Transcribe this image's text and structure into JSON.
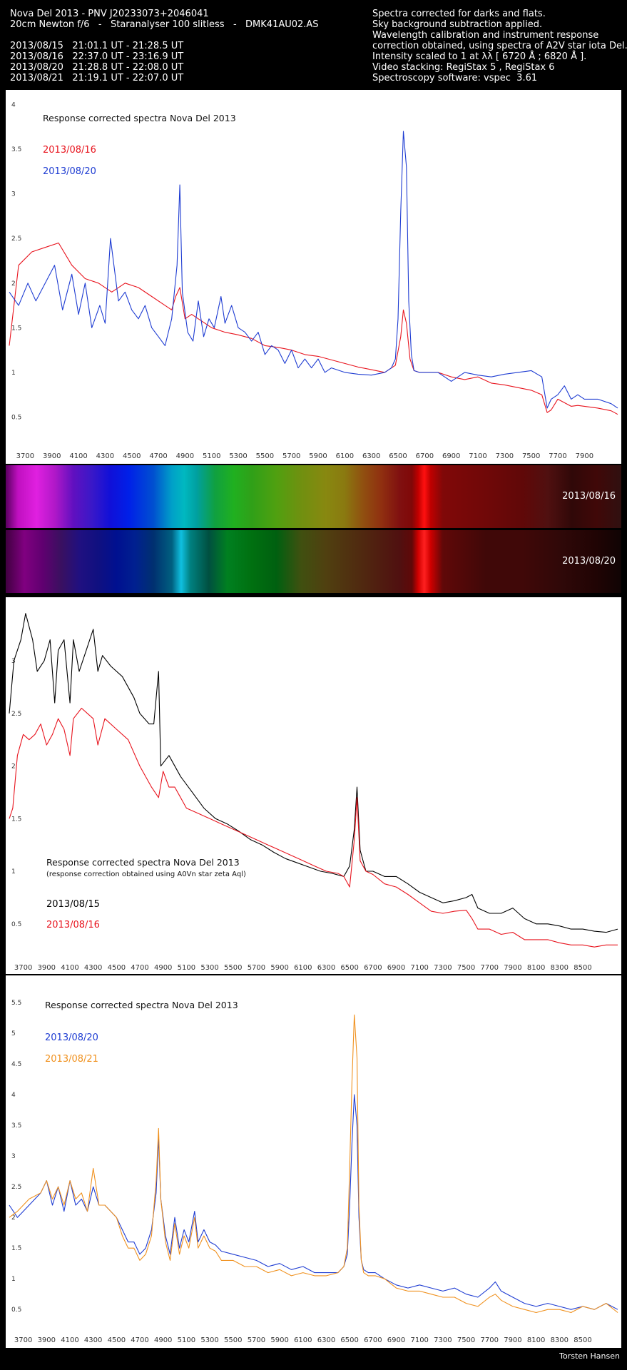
{
  "header": {
    "left": [
      "Nova Del 2013 - PNV J20233073+2046041",
      "20cm Newton f/6   -   Staranalyser 100 slitless   -   DMK41AU02.AS",
      "",
      "2013/08/15   21:01.1 UT - 21:28.5 UT",
      "2013/08/16   22:37.0 UT - 23:16.9 UT",
      "2013/08/20   21:28.8 UT - 22:08.0 UT",
      "2013/08/21   21:19.1 UT - 22:07.0 UT"
    ],
    "right": [
      "Spectra corrected for darks and flats.",
      "Sky background subtraction applied.",
      "Wavelength calibration and instrument response",
      "correction obtained, using spectra of A2V star iota Del.",
      "Intensity scaled to 1 at λλ [ 6720 Å ; 6820 Å ].",
      "Video stacking: RegiStax 5 , RegiStax 6",
      "Spectroscopy software: vspec  3.61"
    ]
  },
  "strip": {
    "band_labels": [
      "2013/08/16",
      "2013/08/20"
    ]
  },
  "footer": {
    "credit": "Torsten Hansen"
  },
  "chart_data": [
    {
      "type": "line",
      "title": "Response corrected spectra Nova Del 2013",
      "subtitle": "",
      "xlim": [
        3580,
        8150
      ],
      "ylim": [
        0.2,
        4.1
      ],
      "xticks": [
        3700,
        3900,
        4100,
        4300,
        4500,
        4700,
        4900,
        5100,
        5300,
        5500,
        5700,
        5900,
        6100,
        6300,
        6500,
        6700,
        6900,
        7100,
        7300,
        7500,
        7700,
        7900
      ],
      "yticks": [
        0.5,
        1,
        1.5,
        2,
        2.5,
        3,
        3.5,
        4
      ],
      "series": [
        {
          "name": "2013/08/16",
          "color": "#e8141e",
          "x": [
            3580,
            3650,
            3750,
            3850,
            3950,
            4050,
            4150,
            4250,
            4350,
            4450,
            4550,
            4650,
            4750,
            4800,
            4830,
            4861,
            4900,
            4950,
            5000,
            5050,
            5100,
            5200,
            5300,
            5400,
            5500,
            5600,
            5700,
            5800,
            5900,
            6000,
            6100,
            6200,
            6300,
            6400,
            6480,
            6520,
            6540,
            6563,
            6590,
            6620,
            6660,
            6720,
            6800,
            6900,
            7000,
            7100,
            7200,
            7300,
            7400,
            7500,
            7580,
            7620,
            7650,
            7700,
            7750,
            7800,
            7850,
            7900,
            8000,
            8100,
            8150
          ],
          "y": [
            1.3,
            2.2,
            2.35,
            2.4,
            2.45,
            2.2,
            2.05,
            2.0,
            1.9,
            2.0,
            1.95,
            1.85,
            1.75,
            1.7,
            1.85,
            1.95,
            1.6,
            1.65,
            1.6,
            1.55,
            1.5,
            1.45,
            1.42,
            1.38,
            1.3,
            1.28,
            1.25,
            1.2,
            1.18,
            1.14,
            1.1,
            1.06,
            1.03,
            1.0,
            1.08,
            1.4,
            1.7,
            1.55,
            1.15,
            1.02,
            1.0,
            1.0,
            1.0,
            0.95,
            0.92,
            0.95,
            0.88,
            0.86,
            0.83,
            0.8,
            0.75,
            0.55,
            0.58,
            0.7,
            0.66,
            0.62,
            0.63,
            0.62,
            0.6,
            0.57,
            0.53
          ]
        },
        {
          "name": "2013/08/20",
          "color": "#1e3cd2",
          "x": [
            3580,
            3650,
            3720,
            3780,
            3850,
            3920,
            3980,
            4050,
            4100,
            4150,
            4200,
            4260,
            4300,
            4340,
            4400,
            4450,
            4500,
            4550,
            4600,
            4650,
            4700,
            4750,
            4800,
            4840,
            4861,
            4880,
            4920,
            4960,
            5000,
            5040,
            5080,
            5120,
            5170,
            5200,
            5250,
            5300,
            5350,
            5400,
            5450,
            5500,
            5550,
            5600,
            5650,
            5700,
            5750,
            5800,
            5850,
            5900,
            5950,
            6000,
            6100,
            6200,
            6300,
            6400,
            6450,
            6480,
            6500,
            6520,
            6540,
            6563,
            6580,
            6600,
            6620,
            6660,
            6720,
            6800,
            6900,
            7000,
            7100,
            7200,
            7300,
            7400,
            7500,
            7580,
            7620,
            7650,
            7700,
            7750,
            7800,
            7850,
            7900,
            8000,
            8100,
            8150
          ],
          "y": [
            1.9,
            1.75,
            2.0,
            1.8,
            2.0,
            2.2,
            1.7,
            2.1,
            1.65,
            2.0,
            1.5,
            1.75,
            1.55,
            2.5,
            1.8,
            1.9,
            1.7,
            1.6,
            1.75,
            1.5,
            1.4,
            1.3,
            1.6,
            2.2,
            3.1,
            1.9,
            1.45,
            1.35,
            1.8,
            1.4,
            1.6,
            1.5,
            1.85,
            1.55,
            1.75,
            1.5,
            1.45,
            1.35,
            1.45,
            1.2,
            1.3,
            1.25,
            1.1,
            1.25,
            1.05,
            1.15,
            1.05,
            1.15,
            1.0,
            1.05,
            1.0,
            0.98,
            0.97,
            1.0,
            1.05,
            1.15,
            1.6,
            2.8,
            3.7,
            3.3,
            1.8,
            1.2,
            1.02,
            1.0,
            1.0,
            1.0,
            0.9,
            1.0,
            0.97,
            0.95,
            0.98,
            1.0,
            1.02,
            0.95,
            0.6,
            0.7,
            0.75,
            0.85,
            0.7,
            0.75,
            0.7,
            0.7,
            0.65,
            0.6
          ]
        }
      ]
    },
    {
      "type": "line",
      "title": "Response corrected spectra Nova Del 2013",
      "subtitle": "(response correction obtained using A0Vn star zeta Aql)",
      "xlim": [
        3580,
        8800
      ],
      "ylim": [
        0.2,
        3.55
      ],
      "xticks": [
        3700,
        3900,
        4100,
        4300,
        4500,
        4700,
        4900,
        5100,
        5300,
        5500,
        5700,
        5900,
        6100,
        6300,
        6500,
        6700,
        6900,
        7100,
        7300,
        7500,
        7700,
        7900,
        8100,
        8300,
        8500
      ],
      "yticks": [
        0.5,
        1,
        1.5,
        2,
        2.5,
        3
      ],
      "series": [
        {
          "name": "2013/08/15",
          "color": "#000000",
          "x": [
            3580,
            3620,
            3680,
            3720,
            3780,
            3820,
            3880,
            3930,
            3970,
            4000,
            4050,
            4101,
            4130,
            4180,
            4240,
            4300,
            4340,
            4380,
            4450,
            4550,
            4650,
            4700,
            4780,
            4820,
            4861,
            4880,
            4950,
            5050,
            5150,
            5250,
            5350,
            5450,
            5550,
            5650,
            5750,
            5850,
            5950,
            6050,
            6150,
            6250,
            6350,
            6450,
            6500,
            6540,
            6563,
            6590,
            6640,
            6700,
            6800,
            6900,
            7000,
            7100,
            7200,
            7300,
            7400,
            7500,
            7550,
            7600,
            7700,
            7800,
            7900,
            8000,
            8100,
            8200,
            8300,
            8400,
            8500,
            8600,
            8700,
            8800
          ],
          "y": [
            2.5,
            3.0,
            3.2,
            3.45,
            3.2,
            2.9,
            3.0,
            3.2,
            2.6,
            3.1,
            3.2,
            2.6,
            3.2,
            2.9,
            3.1,
            3.3,
            2.9,
            3.05,
            2.95,
            2.85,
            2.65,
            2.5,
            2.4,
            2.4,
            2.9,
            2.0,
            2.1,
            1.9,
            1.75,
            1.6,
            1.5,
            1.45,
            1.38,
            1.3,
            1.25,
            1.18,
            1.12,
            1.08,
            1.04,
            1.0,
            0.98,
            0.95,
            1.05,
            1.4,
            1.8,
            1.2,
            1.0,
            1.0,
            0.95,
            0.95,
            0.88,
            0.8,
            0.75,
            0.7,
            0.72,
            0.75,
            0.78,
            0.65,
            0.6,
            0.6,
            0.65,
            0.55,
            0.5,
            0.5,
            0.48,
            0.45,
            0.45,
            0.43,
            0.42,
            0.45
          ]
        },
        {
          "name": "2013/08/16",
          "color": "#e8141e",
          "x": [
            3580,
            3610,
            3650,
            3700,
            3750,
            3800,
            3850,
            3900,
            3950,
            4000,
            4050,
            4101,
            4130,
            4200,
            4250,
            4300,
            4340,
            4400,
            4500,
            4600,
            4700,
            4800,
            4861,
            4900,
            4950,
            5000,
            5050,
            5100,
            5200,
            5300,
            5400,
            5500,
            5600,
            5700,
            5800,
            5900,
            6000,
            6100,
            6200,
            6300,
            6400,
            6450,
            6500,
            6540,
            6563,
            6590,
            6640,
            6700,
            6800,
            6900,
            7000,
            7100,
            7200,
            7300,
            7400,
            7500,
            7550,
            7600,
            7700,
            7800,
            7900,
            8000,
            8100,
            8200,
            8300,
            8400,
            8500,
            8600,
            8700,
            8800
          ],
          "y": [
            1.5,
            1.6,
            2.1,
            2.3,
            2.25,
            2.3,
            2.4,
            2.2,
            2.3,
            2.45,
            2.35,
            2.1,
            2.45,
            2.55,
            2.5,
            2.45,
            2.2,
            2.45,
            2.35,
            2.25,
            2.0,
            1.8,
            1.7,
            1.95,
            1.8,
            1.8,
            1.7,
            1.6,
            1.55,
            1.5,
            1.45,
            1.4,
            1.35,
            1.3,
            1.25,
            1.2,
            1.15,
            1.1,
            1.05,
            1.0,
            0.98,
            0.95,
            0.85,
            1.3,
            1.7,
            1.1,
            1.0,
            0.97,
            0.88,
            0.85,
            0.78,
            0.7,
            0.62,
            0.6,
            0.62,
            0.63,
            0.55,
            0.45,
            0.45,
            0.4,
            0.42,
            0.35,
            0.35,
            0.35,
            0.32,
            0.3,
            0.3,
            0.28,
            0.3,
            0.3
          ]
        }
      ]
    },
    {
      "type": "line",
      "title": "Response corrected spectra Nova Del 2013",
      "subtitle": "",
      "xlim": [
        3580,
        8800
      ],
      "ylim": [
        0.2,
        5.85
      ],
      "xticks": [
        3700,
        3900,
        4100,
        4300,
        4500,
        4700,
        4900,
        5100,
        5300,
        5500,
        5700,
        5900,
        6100,
        6300,
        6500,
        6700,
        6900,
        7100,
        7300,
        7500,
        7700,
        7900,
        8100,
        8300,
        8500
      ],
      "yticks": [
        0.5,
        1,
        1.5,
        2,
        2.5,
        3,
        3.5,
        4,
        4.5,
        5,
        5.5
      ],
      "series": [
        {
          "name": "2013/08/20",
          "color": "#1e3cd2",
          "x": [
            3580,
            3650,
            3750,
            3850,
            3900,
            3950,
            4000,
            4050,
            4101,
            4150,
            4200,
            4250,
            4300,
            4350,
            4400,
            4450,
            4500,
            4550,
            4600,
            4650,
            4700,
            4750,
            4800,
            4840,
            4861,
            4880,
            4920,
            4960,
            5000,
            5040,
            5080,
            5120,
            5170,
            5200,
            5250,
            5300,
            5350,
            5400,
            5500,
            5600,
            5700,
            5800,
            5900,
            6000,
            6100,
            6200,
            6300,
            6400,
            6450,
            6480,
            6500,
            6520,
            6540,
            6563,
            6580,
            6600,
            6620,
            6660,
            6720,
            6800,
            6900,
            7000,
            7100,
            7200,
            7300,
            7400,
            7500,
            7600,
            7700,
            7750,
            7800,
            7900,
            8000,
            8100,
            8200,
            8300,
            8400,
            8500,
            8600,
            8700,
            8800
          ],
          "y": [
            2.2,
            2.0,
            2.2,
            2.4,
            2.6,
            2.2,
            2.5,
            2.1,
            2.6,
            2.2,
            2.3,
            2.1,
            2.5,
            2.2,
            2.2,
            2.1,
            2.0,
            1.8,
            1.6,
            1.6,
            1.4,
            1.5,
            1.8,
            2.4,
            3.3,
            2.3,
            1.7,
            1.4,
            2.0,
            1.5,
            1.8,
            1.6,
            2.1,
            1.6,
            1.8,
            1.6,
            1.55,
            1.45,
            1.4,
            1.35,
            1.3,
            1.2,
            1.25,
            1.15,
            1.2,
            1.1,
            1.1,
            1.1,
            1.2,
            1.4,
            2.2,
            3.2,
            4.0,
            3.5,
            2.0,
            1.3,
            1.15,
            1.1,
            1.1,
            1.0,
            0.9,
            0.85,
            0.9,
            0.85,
            0.8,
            0.85,
            0.75,
            0.7,
            0.85,
            0.95,
            0.8,
            0.7,
            0.6,
            0.55,
            0.6,
            0.55,
            0.5,
            0.55,
            0.5,
            0.6,
            0.5
          ]
        },
        {
          "name": "2013/08/21",
          "color": "#f0911e",
          "x": [
            3580,
            3650,
            3750,
            3850,
            3900,
            3950,
            4000,
            4050,
            4101,
            4150,
            4200,
            4250,
            4300,
            4350,
            4400,
            4450,
            4500,
            4550,
            4600,
            4650,
            4700,
            4750,
            4800,
            4840,
            4861,
            4880,
            4920,
            4960,
            5000,
            5040,
            5080,
            5120,
            5170,
            5200,
            5250,
            5300,
            5350,
            5400,
            5500,
            5600,
            5700,
            5800,
            5900,
            6000,
            6100,
            6200,
            6300,
            6400,
            6450,
            6480,
            6500,
            6520,
            6540,
            6563,
            6580,
            6600,
            6620,
            6660,
            6720,
            6800,
            6900,
            7000,
            7100,
            7200,
            7300,
            7400,
            7500,
            7600,
            7700,
            7750,
            7800,
            7900,
            8000,
            8100,
            8200,
            8300,
            8400,
            8500,
            8600,
            8700,
            8800
          ],
          "y": [
            2.0,
            2.1,
            2.3,
            2.4,
            2.6,
            2.3,
            2.5,
            2.2,
            2.6,
            2.3,
            2.4,
            2.1,
            2.8,
            2.2,
            2.2,
            2.1,
            2.0,
            1.7,
            1.5,
            1.5,
            1.3,
            1.4,
            1.7,
            2.6,
            3.45,
            2.3,
            1.6,
            1.3,
            1.9,
            1.4,
            1.7,
            1.5,
            2.0,
            1.5,
            1.7,
            1.5,
            1.45,
            1.3,
            1.3,
            1.2,
            1.2,
            1.1,
            1.15,
            1.05,
            1.1,
            1.05,
            1.05,
            1.1,
            1.2,
            1.5,
            2.8,
            4.2,
            5.3,
            4.6,
            2.2,
            1.3,
            1.1,
            1.05,
            1.05,
            1.0,
            0.85,
            0.8,
            0.8,
            0.75,
            0.7,
            0.7,
            0.6,
            0.55,
            0.7,
            0.75,
            0.65,
            0.55,
            0.5,
            0.45,
            0.5,
            0.5,
            0.45,
            0.55,
            0.5,
            0.6,
            0.45
          ]
        }
      ]
    }
  ]
}
